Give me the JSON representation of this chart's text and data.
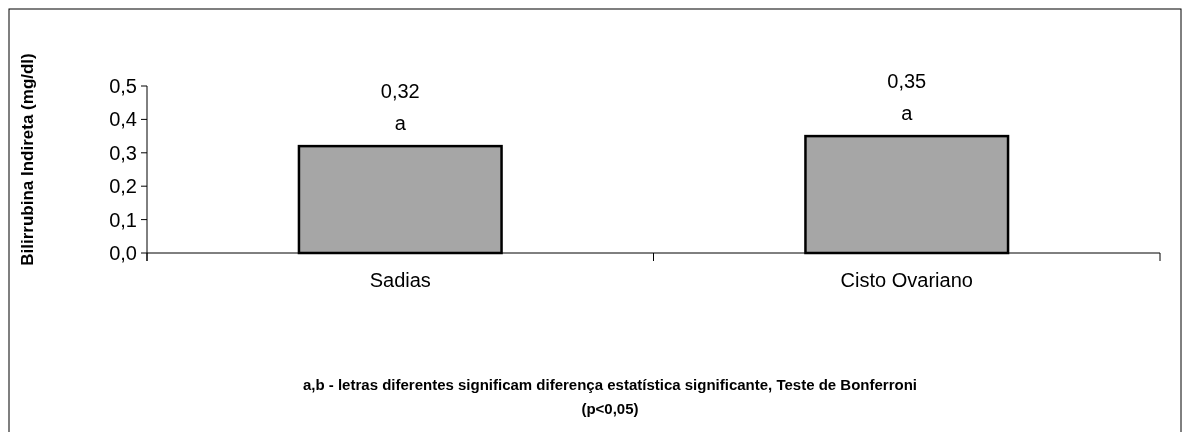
{
  "chart_data": {
    "type": "bar",
    "ylabel": "Bilirrubina Indireta (mg/dl)",
    "categories": [
      "Sadias",
      "Cisto Ovariano"
    ],
    "values": [
      0.32,
      0.35
    ],
    "color": "#a6a6a6",
    "value_labels": [
      "0,32",
      "0,35"
    ],
    "ylim": [
      0,
      0.5
    ],
    "yticks": [
      {
        "value": 0,
        "label": "0,0"
      },
      {
        "value": 0.1,
        "label": "0,1"
      },
      {
        "value": 0.2,
        "label": "0,2"
      },
      {
        "value": 0.3,
        "label": "0,3"
      },
      {
        "value": 0.4,
        "label": "0,4"
      },
      {
        "value": 0.5,
        "label": "0,5"
      }
    ],
    "grid": false,
    "annotations": [
      "a",
      "a",
      "a,b - letras diferentes significam diferença estatística significante, Teste de Bonferroni (p<0,05)"
    ]
  }
}
